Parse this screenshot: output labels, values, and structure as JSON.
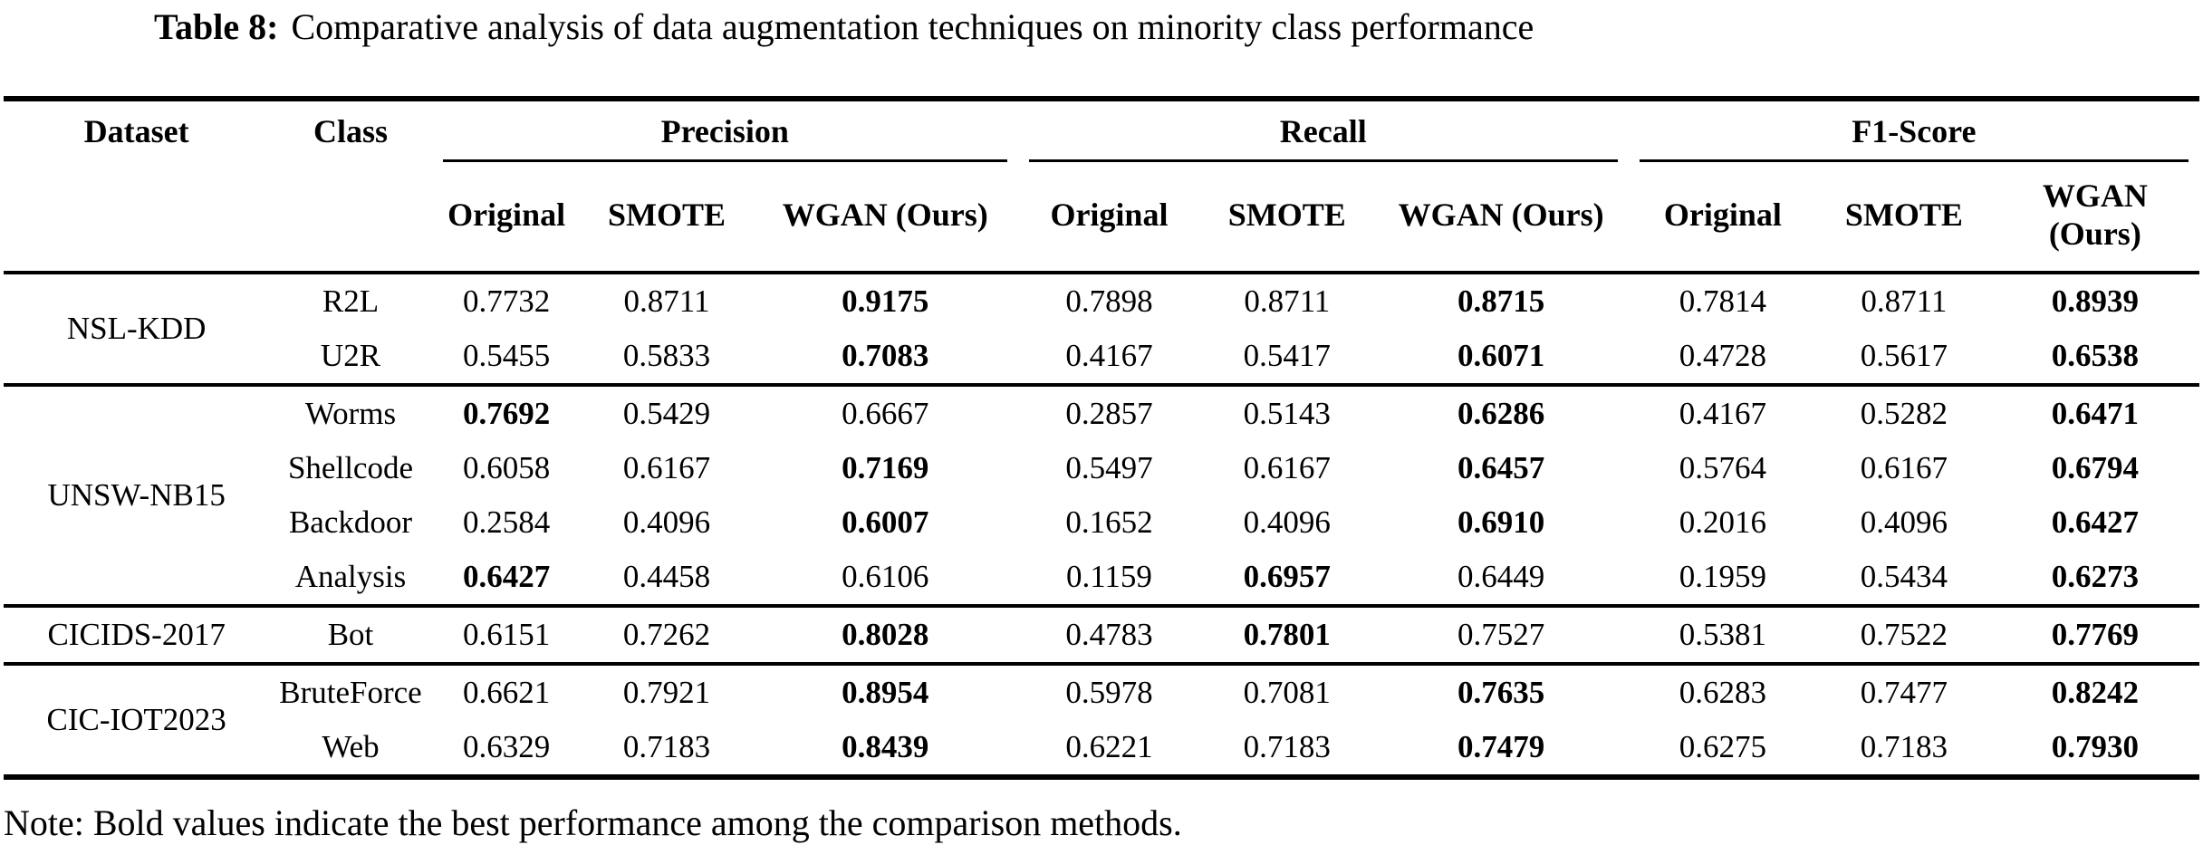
{
  "caption": {
    "label": "Table 8:",
    "text": "Comparative analysis of data augmentation techniques on minority class performance"
  },
  "columns": {
    "dataset": "Dataset",
    "class": "Class",
    "groups": [
      {
        "label": "Precision",
        "subs": [
          "Original",
          "SMOTE",
          "WGAN (Ours)"
        ]
      },
      {
        "label": "Recall",
        "subs": [
          "Original",
          "SMOTE",
          "WGAN (Ours)"
        ]
      },
      {
        "label": "F1-Score",
        "subs": [
          "Original",
          "SMOTE",
          "WGAN (Ours)"
        ]
      }
    ]
  },
  "body": [
    {
      "dataset": "NSL-KDD",
      "rows": [
        {
          "class": "R2L",
          "values": [
            "0.7732",
            "0.8711",
            "0.9175",
            "0.7898",
            "0.8711",
            "0.8715",
            "0.7814",
            "0.8711",
            "0.8939"
          ],
          "bold": [
            2,
            5,
            8
          ]
        },
        {
          "class": "U2R",
          "values": [
            "0.5455",
            "0.5833",
            "0.7083",
            "0.4167",
            "0.5417",
            "0.6071",
            "0.4728",
            "0.5617",
            "0.6538"
          ],
          "bold": [
            2,
            5,
            8
          ]
        }
      ]
    },
    {
      "dataset": "UNSW-NB15",
      "rows": [
        {
          "class": "Worms",
          "values": [
            "0.7692",
            "0.5429",
            "0.6667",
            "0.2857",
            "0.5143",
            "0.6286",
            "0.4167",
            "0.5282",
            "0.6471"
          ],
          "bold": [
            0,
            5,
            8
          ]
        },
        {
          "class": "Shellcode",
          "values": [
            "0.6058",
            "0.6167",
            "0.7169",
            "0.5497",
            "0.6167",
            "0.6457",
            "0.5764",
            "0.6167",
            "0.6794"
          ],
          "bold": [
            2,
            5,
            8
          ]
        },
        {
          "class": "Backdoor",
          "values": [
            "0.2584",
            "0.4096",
            "0.6007",
            "0.1652",
            "0.4096",
            "0.6910",
            "0.2016",
            "0.4096",
            "0.6427"
          ],
          "bold": [
            2,
            5,
            8
          ]
        },
        {
          "class": "Analysis",
          "values": [
            "0.6427",
            "0.4458",
            "0.6106",
            "0.1159",
            "0.6957",
            "0.6449",
            "0.1959",
            "0.5434",
            "0.6273"
          ],
          "bold": [
            0,
            4,
            8
          ]
        }
      ]
    },
    {
      "dataset": "CICIDS-2017",
      "rows": [
        {
          "class": "Bot",
          "values": [
            "0.6151",
            "0.7262",
            "0.8028",
            "0.4783",
            "0.7801",
            "0.7527",
            "0.5381",
            "0.7522",
            "0.7769"
          ],
          "bold": [
            2,
            4,
            8
          ]
        }
      ]
    },
    {
      "dataset": "CIC-IOT2023",
      "rows": [
        {
          "class": "BruteForce",
          "values": [
            "0.6621",
            "0.7921",
            "0.8954",
            "0.5978",
            "0.7081",
            "0.7635",
            "0.6283",
            "0.7477",
            "0.8242"
          ],
          "bold": [
            2,
            5,
            8
          ]
        },
        {
          "class": "Web",
          "values": [
            "0.6329",
            "0.7183",
            "0.8439",
            "0.6221",
            "0.7183",
            "0.7479",
            "0.6275",
            "0.7183",
            "0.7930"
          ],
          "bold": [
            2,
            5,
            8
          ]
        }
      ]
    }
  ],
  "note": "Note: Bold values indicate the best performance among the comparison methods."
}
